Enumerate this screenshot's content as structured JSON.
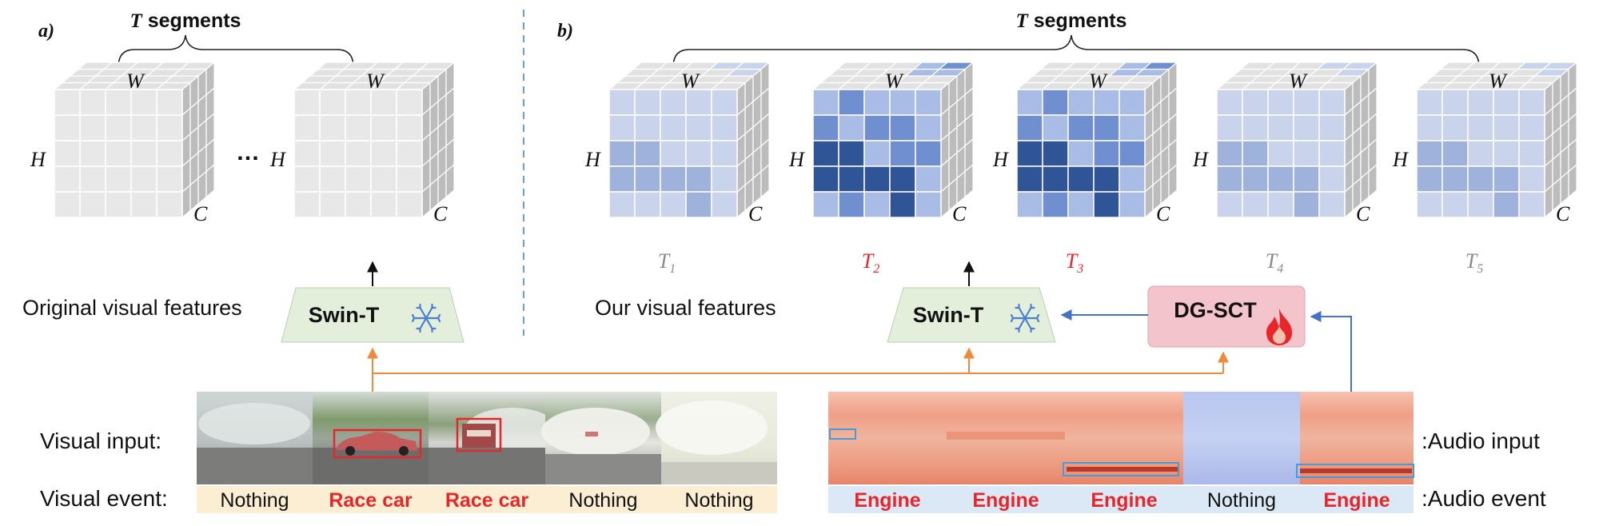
{
  "panel_a": {
    "label": "a)",
    "segments_title_T": "T",
    "segments_title_rest": " segments",
    "ellipsis": "…",
    "cube_w": "W",
    "cube_h": "H",
    "cube_c": "C",
    "feature_label": "Original visual features",
    "encoder_label": "Swin-T",
    "encoder_icon": "snowflake-icon"
  },
  "panel_b": {
    "label": "b)",
    "segments_title_T": "T",
    "segments_title_rest": " segments",
    "cube_w": "W",
    "cube_h": "H",
    "cube_c": "C",
    "feature_label": "Our visual features",
    "encoder_label": "Swin-T",
    "encoder_icon": "snowflake-icon",
    "adapter_label": "DG-SCT",
    "adapter_icon": "fire-icon",
    "segments": [
      {
        "base": "T",
        "sub": "1",
        "highlighted": false
      },
      {
        "base": "T",
        "sub": "2",
        "highlighted": true
      },
      {
        "base": "T",
        "sub": "3",
        "highlighted": true
      },
      {
        "base": "T",
        "sub": "4",
        "highlighted": false
      },
      {
        "base": "T",
        "sub": "5",
        "highlighted": false
      }
    ]
  },
  "visual_row": {
    "input_label": "Visual input:",
    "event_label": "Visual event:",
    "events": [
      {
        "text": "Nothing",
        "is_event": false
      },
      {
        "text": "Race car",
        "is_event": true
      },
      {
        "text": "Race car",
        "is_event": true
      },
      {
        "text": "Nothing",
        "is_event": false
      },
      {
        "text": "Nothing",
        "is_event": false
      }
    ]
  },
  "audio_row": {
    "input_label": ":Audio input",
    "event_label": ":Audio event",
    "events": [
      {
        "text": "Engine",
        "is_event": true
      },
      {
        "text": "Engine",
        "is_event": true
      },
      {
        "text": "Engine",
        "is_event": true
      },
      {
        "text": "Nothing",
        "is_event": false
      },
      {
        "text": "Engine",
        "is_event": true
      }
    ]
  },
  "colors": {
    "event_red": "#e8262a",
    "neutral_gray": "#8a8a8a",
    "visual_event_bg": "#fbeed2",
    "audio_event_bg": "#dbe8f5",
    "swin_fill": "#e3efdb",
    "dgsct_fill": "#f3c4cb",
    "orange_arrow": "#ee8a3a",
    "blue_arrow": "#4472c4",
    "divider_blue": "#6a9fd4",
    "highlight_blue": "#2f5597"
  }
}
